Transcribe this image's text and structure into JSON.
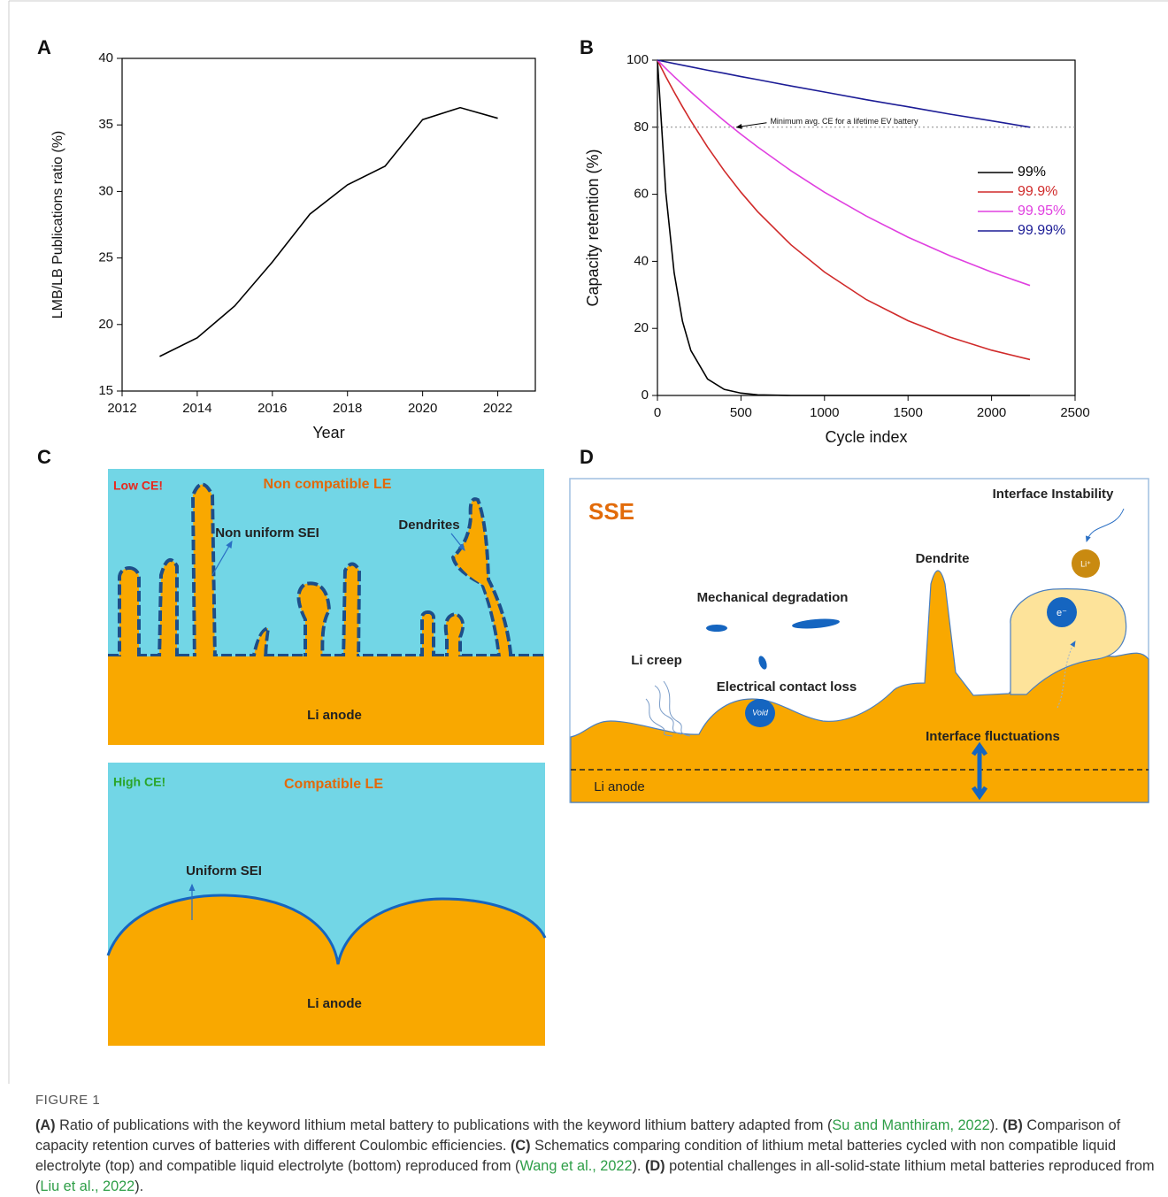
{
  "chart_data": [
    {
      "type": "line",
      "panel": "A",
      "x": [
        2013,
        2014,
        2015,
        2016,
        2017,
        2018,
        2019,
        2020,
        2021,
        2022
      ],
      "series": [
        {
          "color": "#000000",
          "values": [
            17.6,
            19.0,
            21.4,
            24.7,
            28.3,
            30.5,
            31.9,
            35.4,
            36.3,
            35.5
          ]
        }
      ],
      "xlabel": "Year",
      "ylabel": "LMB/LB Publications ratio (%)",
      "xlim": [
        2012,
        2023
      ],
      "ylim": [
        15,
        40
      ],
      "xticks": [
        2012,
        2014,
        2016,
        2018,
        2020,
        2022
      ],
      "yticks": [
        15,
        20,
        25,
        30,
        35,
        40
      ]
    },
    {
      "type": "line",
      "panel": "B",
      "x": [
        0,
        50,
        100,
        150,
        200,
        300,
        400,
        500,
        600,
        800,
        1000,
        1250,
        1500,
        1750,
        2000,
        2230
      ],
      "series": [
        {
          "name": "99%",
          "color": "#000000",
          "values": [
            100,
            60.5,
            36.6,
            22.1,
            13.4,
            4.9,
            1.8,
            0.7,
            0.2,
            0,
            0,
            0,
            0,
            0,
            0,
            0
          ]
        },
        {
          "name": "99.9%",
          "color": "#d02a2a",
          "values": [
            100,
            95.1,
            90.5,
            86.1,
            81.9,
            74.1,
            67.0,
            60.6,
            54.8,
            44.9,
            36.8,
            28.6,
            22.3,
            17.4,
            13.5,
            10.7
          ]
        },
        {
          "name": "99.95%",
          "color": "#e040e0",
          "values": [
            100,
            97.5,
            95.1,
            92.8,
            90.5,
            86.1,
            81.9,
            77.9,
            74.1,
            67.0,
            60.6,
            53.5,
            47.2,
            41.7,
            36.8,
            32.8
          ]
        },
        {
          "name": "99.99%",
          "color": "#1c1c96",
          "values": [
            100,
            99.5,
            99.0,
            98.5,
            98.0,
            97.0,
            96.1,
            95.1,
            94.2,
            92.3,
            90.5,
            88.2,
            86.1,
            83.9,
            81.9,
            80.0
          ]
        }
      ],
      "reference_line": {
        "value": 80,
        "label": "Minimum avg. CE for a lifetime EV battery"
      },
      "xlabel": "Cycle index",
      "ylabel": "Capacity retention (%)",
      "xlim": [
        0,
        2500
      ],
      "ylim": [
        0,
        100
      ],
      "xticks": [
        0,
        500,
        1000,
        1500,
        2000,
        2500
      ],
      "yticks": [
        0,
        20,
        40,
        60,
        80,
        100
      ],
      "legend": "right"
    }
  ],
  "panel_c": {
    "label": "C",
    "top": {
      "status": "Low CE!",
      "electrolyte": "Non compatible LE",
      "sei": "Non uniform SEI",
      "dendrites": "Dendrites",
      "anode": "Li anode"
    },
    "bottom": {
      "status": "High CE!",
      "electrolyte": "Compatible LE",
      "sei": "Uniform SEI",
      "anode": "Li anode"
    }
  },
  "panel_d": {
    "label": "D",
    "electrolyte": "SSE",
    "instability": "Interface Instability",
    "ion": "Li⁺",
    "electron": "e⁻",
    "dendrite": "Dendrite",
    "mechanical": "Mechanical degradation",
    "creep": "Li creep",
    "contact": "Electrical contact loss",
    "void": "Void",
    "fluctuations": "Interface fluctuations",
    "anode": "Li anode"
  },
  "caption": {
    "title": "FIGURE 1",
    "segments": [
      "(A)",
      " Ratio of publications with the keyword lithium metal battery to publications with the keyword lithium battery adapted from (",
      "Su and Manthiram, 2022",
      "). ",
      "(B)",
      " Comparison of capacity retention curves of batteries with different Coulombic efficiencies. ",
      "(C)",
      " Schematics comparing condition of lithium metal batteries cycled with non compatible liquid electrolyte (top) and compatible liquid electrolyte (bottom) reproduced from (",
      "Wang et al., 2022",
      "). ",
      "(D)",
      " potential challenges in all-solid-state lithium metal batteries reproduced from (",
      "Liu et al., 2022",
      ")."
    ]
  }
}
